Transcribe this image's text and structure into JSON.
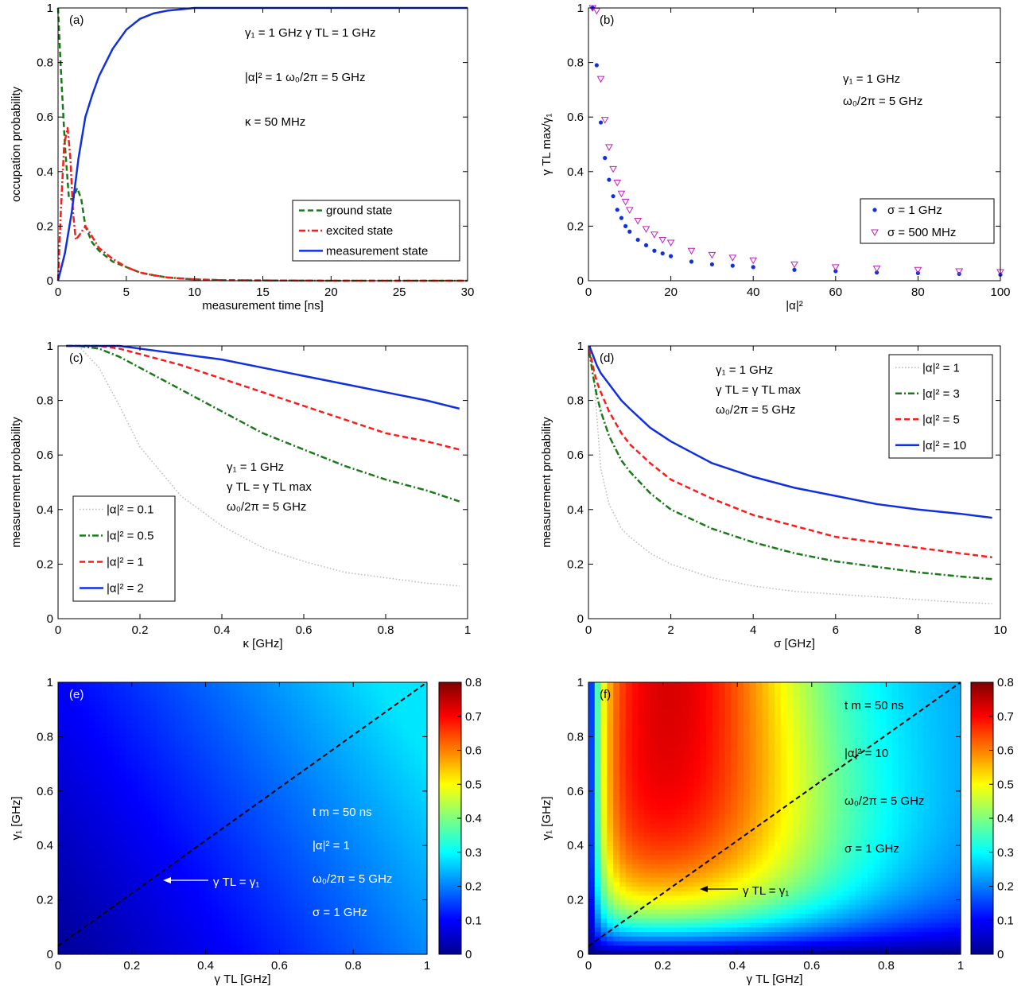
{
  "colors": {
    "green": "#1a7a1a",
    "red": "#ff1a1a",
    "blue": "#1030e0",
    "gray": "#b8b8b8",
    "magenta": "#c020c0",
    "dash": "#000000"
  },
  "chart_data": [
    {
      "id": "a",
      "type": "line",
      "panel_label": "(a)",
      "xlabel": "measurement time [ns]",
      "ylabel": "occupation probability",
      "xlim": [
        0,
        30
      ],
      "ylim": [
        0,
        1
      ],
      "xticks": [
        "0",
        "5",
        "10",
        "15",
        "20",
        "25",
        "30"
      ],
      "yticks": [
        "0",
        "0.2",
        "0.4",
        "0.6",
        "0.8",
        "1"
      ],
      "annotations": [
        "γ₁ = 1 GHz     γ TL = 1 GHz",
        "|α|² = 1     ω₀/2π = 5 GHz",
        "κ = 50 MHz"
      ],
      "legend": [
        "ground state",
        "excited state",
        "measurement state"
      ],
      "legend_position": "lower-right",
      "series": [
        {
          "name": "ground state",
          "style": "dashed",
          "color": "green",
          "x": [
            0,
            0.2,
            0.5,
            0.8,
            1.1,
            1.4,
            1.7,
            2.0,
            2.5,
            3,
            4,
            5,
            6,
            7,
            8,
            9,
            10,
            12,
            15,
            20,
            30
          ],
          "y": [
            1.0,
            0.78,
            0.5,
            0.3,
            0.3,
            0.34,
            0.3,
            0.2,
            0.14,
            0.11,
            0.07,
            0.05,
            0.03,
            0.02,
            0.012,
            0.008,
            0.005,
            0.002,
            0.001,
            0.0,
            0.0
          ]
        },
        {
          "name": "excited state",
          "style": "dashdot",
          "color": "red",
          "x": [
            0,
            0.2,
            0.45,
            0.7,
            0.9,
            1.1,
            1.3,
            1.6,
            2.0,
            2.4,
            3,
            4,
            5,
            6,
            7,
            8,
            10,
            12,
            15,
            20,
            30
          ],
          "y": [
            0.0,
            0.25,
            0.5,
            0.56,
            0.45,
            0.25,
            0.15,
            0.17,
            0.2,
            0.17,
            0.12,
            0.08,
            0.05,
            0.03,
            0.02,
            0.012,
            0.005,
            0.002,
            0.001,
            0.0,
            0.0
          ]
        },
        {
          "name": "measurement state",
          "style": "solid",
          "color": "blue",
          "x": [
            0,
            0.5,
            1,
            1.5,
            2,
            2.5,
            3,
            4,
            5,
            6,
            7,
            8,
            9,
            10,
            12,
            15,
            20,
            30
          ],
          "y": [
            0.0,
            0.1,
            0.25,
            0.45,
            0.6,
            0.68,
            0.75,
            0.85,
            0.92,
            0.96,
            0.98,
            0.99,
            0.995,
            1.0,
            1.0,
            1.0,
            1.0,
            1.0
          ]
        }
      ]
    },
    {
      "id": "b",
      "type": "scatter",
      "panel_label": "(b)",
      "xlabel": "|α|²",
      "ylabel": "γ TL max/γ₁",
      "xlim": [
        0,
        100
      ],
      "ylim": [
        0,
        1
      ],
      "xticks": [
        "0",
        "20",
        "40",
        "60",
        "80",
        "100"
      ],
      "yticks": [
        "0",
        "0.2",
        "0.4",
        "0.6",
        "0.8",
        "1"
      ],
      "annotations": [
        "γ₁ = 1 GHz",
        "ω₀/2π = 5 GHz"
      ],
      "legend": [
        "σ = 1 GHz",
        "σ = 500 MHz"
      ],
      "legend_position": "lower-right",
      "series": [
        {
          "name": "σ = 1 GHz",
          "marker": "dot",
          "color": "blue",
          "x": [
            1,
            2,
            3,
            4,
            5,
            6,
            7,
            8,
            9,
            10,
            12,
            14,
            16,
            18,
            20,
            25,
            30,
            35,
            40,
            50,
            60,
            70,
            80,
            90,
            100
          ],
          "y": [
            1.0,
            0.79,
            0.58,
            0.45,
            0.37,
            0.31,
            0.26,
            0.23,
            0.2,
            0.18,
            0.15,
            0.13,
            0.11,
            0.1,
            0.09,
            0.07,
            0.06,
            0.055,
            0.05,
            0.04,
            0.035,
            0.03,
            0.028,
            0.025,
            0.022
          ]
        },
        {
          "name": "σ = 500 MHz",
          "marker": "triangle-down",
          "color": "magenta",
          "x": [
            1,
            2,
            3,
            4,
            5,
            6,
            7,
            8,
            9,
            10,
            12,
            14,
            16,
            18,
            20,
            25,
            30,
            35,
            40,
            50,
            60,
            70,
            80,
            90,
            100
          ],
          "y": [
            1.0,
            0.99,
            0.74,
            0.59,
            0.49,
            0.41,
            0.36,
            0.32,
            0.29,
            0.26,
            0.22,
            0.19,
            0.17,
            0.15,
            0.14,
            0.11,
            0.095,
            0.085,
            0.075,
            0.06,
            0.05,
            0.045,
            0.04,
            0.035,
            0.032
          ]
        }
      ]
    },
    {
      "id": "c",
      "type": "line",
      "panel_label": "(c)",
      "xlabel": "κ [GHz]",
      "ylabel": "measurement probability",
      "xlim": [
        0,
        1
      ],
      "ylim": [
        0,
        1
      ],
      "xticks": [
        "0",
        "0.2",
        "0.4",
        "0.6",
        "0.8",
        "1"
      ],
      "yticks": [
        "0",
        "0.2",
        "0.4",
        "0.6",
        "0.8",
        "1"
      ],
      "annotations": [
        "γ₁ = 1 GHz",
        "γ TL = γ TL max",
        "ω₀/2π = 5 GHz"
      ],
      "legend": [
        "|α|² = 0.1",
        "|α|² = 0.5",
        "|α|² = 1",
        "|α|² = 2"
      ],
      "legend_position": "lower-left",
      "series": [
        {
          "name": "|α|² = 0.1",
          "style": "dotted",
          "color": "gray",
          "x": [
            0.02,
            0.05,
            0.1,
            0.15,
            0.2,
            0.3,
            0.4,
            0.5,
            0.6,
            0.7,
            0.8,
            0.9,
            0.98
          ],
          "y": [
            1.0,
            1.0,
            0.92,
            0.78,
            0.63,
            0.45,
            0.34,
            0.26,
            0.21,
            0.17,
            0.15,
            0.13,
            0.12
          ]
        },
        {
          "name": "|α|² = 0.5",
          "style": "dashdot",
          "color": "green",
          "x": [
            0.02,
            0.05,
            0.1,
            0.15,
            0.2,
            0.3,
            0.4,
            0.5,
            0.6,
            0.7,
            0.8,
            0.9,
            0.98
          ],
          "y": [
            1.0,
            1.0,
            0.99,
            0.96,
            0.92,
            0.84,
            0.76,
            0.68,
            0.62,
            0.56,
            0.51,
            0.47,
            0.43
          ]
        },
        {
          "name": "|α|² = 1",
          "style": "dashed",
          "color": "red",
          "x": [
            0.02,
            0.05,
            0.1,
            0.15,
            0.2,
            0.3,
            0.4,
            0.5,
            0.6,
            0.7,
            0.8,
            0.9,
            0.98
          ],
          "y": [
            1.0,
            1.0,
            1.0,
            0.99,
            0.97,
            0.93,
            0.88,
            0.83,
            0.78,
            0.73,
            0.68,
            0.65,
            0.62
          ]
        },
        {
          "name": "|α|² = 2",
          "style": "solid",
          "color": "blue",
          "x": [
            0.02,
            0.05,
            0.1,
            0.15,
            0.2,
            0.3,
            0.4,
            0.5,
            0.6,
            0.7,
            0.8,
            0.9,
            0.98
          ],
          "y": [
            1.0,
            1.0,
            1.0,
            1.0,
            0.99,
            0.97,
            0.95,
            0.92,
            0.89,
            0.86,
            0.83,
            0.8,
            0.77
          ]
        }
      ]
    },
    {
      "id": "d",
      "type": "line",
      "panel_label": "(d)",
      "xlabel": "σ [GHz]",
      "ylabel": "measurement probability",
      "xlim": [
        0,
        10
      ],
      "ylim": [
        0,
        1
      ],
      "xticks": [
        "0",
        "2",
        "4",
        "6",
        "8",
        "10"
      ],
      "yticks": [
        "0",
        "0.2",
        "0.4",
        "0.6",
        "0.8",
        "1"
      ],
      "annotations": [
        "γ₁ = 1 GHz",
        "γ TL = γ TL max",
        "ω₀/2π = 5 GHz"
      ],
      "legend": [
        "|α|² = 1",
        "|α|² = 3",
        "|α|² = 5",
        "|α|² = 10"
      ],
      "legend_position": "top-right",
      "series": [
        {
          "name": "|α|² = 1",
          "style": "dotted",
          "color": "gray",
          "x": [
            0.05,
            0.1,
            0.2,
            0.3,
            0.5,
            0.8,
            1,
            1.5,
            2,
            3,
            4,
            5,
            6,
            7,
            8,
            9,
            9.8
          ],
          "y": [
            1.0,
            0.95,
            0.75,
            0.55,
            0.42,
            0.33,
            0.3,
            0.24,
            0.2,
            0.15,
            0.12,
            0.1,
            0.09,
            0.08,
            0.07,
            0.06,
            0.055
          ]
        },
        {
          "name": "|α|² = 3",
          "style": "dashdot",
          "color": "green",
          "x": [
            0.02,
            0.1,
            0.2,
            0.3,
            0.5,
            0.8,
            1,
            1.5,
            2,
            3,
            4,
            5,
            6,
            7,
            8,
            9,
            9.8
          ],
          "y": [
            0.98,
            0.9,
            0.82,
            0.76,
            0.67,
            0.58,
            0.54,
            0.46,
            0.4,
            0.33,
            0.28,
            0.24,
            0.21,
            0.19,
            0.17,
            0.155,
            0.145
          ]
        },
        {
          "name": "|α|² = 5",
          "style": "dashed",
          "color": "red",
          "x": [
            0.02,
            0.1,
            0.2,
            0.3,
            0.5,
            0.8,
            1,
            1.5,
            2,
            3,
            4,
            5,
            6,
            7,
            8,
            9,
            9.8
          ],
          "y": [
            0.99,
            0.93,
            0.87,
            0.83,
            0.76,
            0.68,
            0.64,
            0.57,
            0.51,
            0.44,
            0.38,
            0.34,
            0.3,
            0.28,
            0.26,
            0.24,
            0.225
          ]
        },
        {
          "name": "|α|² = 10",
          "style": "solid",
          "color": "blue",
          "x": [
            0.02,
            0.1,
            0.2,
            0.3,
            0.5,
            0.8,
            1,
            1.5,
            2,
            3,
            4,
            5,
            6,
            7,
            8,
            9,
            9.8
          ],
          "y": [
            1.0,
            0.97,
            0.93,
            0.9,
            0.86,
            0.8,
            0.77,
            0.7,
            0.65,
            0.57,
            0.52,
            0.48,
            0.45,
            0.42,
            0.4,
            0.385,
            0.37
          ]
        }
      ]
    },
    {
      "id": "e",
      "type": "heatmap",
      "panel_label": "(e)",
      "xlabel": "γ TL [GHz]",
      "ylabel": "γ₁ [GHz]",
      "xlim": [
        0,
        1
      ],
      "ylim": [
        0,
        1
      ],
      "xticks": [
        "0",
        "0.2",
        "0.4",
        "0.6",
        "0.8",
        "1"
      ],
      "yticks": [
        "0",
        "0.2",
        "0.4",
        "0.6",
        "0.8",
        "1"
      ],
      "colorbar_ticks": [
        "0",
        "0.1",
        "0.2",
        "0.3",
        "0.4",
        "0.5",
        "0.6",
        "0.7",
        "0.8"
      ],
      "colorbar_range": [
        0,
        0.8
      ],
      "arrow_label": "γ TL = γ₁",
      "annotations": [
        "t m = 50 ns",
        "|α|² = 1",
        "ω₀/2π = 5 GHz",
        "σ = 1 GHz"
      ],
      "diagonal": {
        "x": [
          0,
          1
        ],
        "y": [
          0.03,
          1.0
        ]
      },
      "value_range": [
        0.02,
        0.28
      ]
    },
    {
      "id": "f",
      "type": "heatmap",
      "panel_label": "(f)",
      "xlabel": "γ TL [GHz]",
      "ylabel": "γ₁ [GHz]",
      "xlim": [
        0,
        1
      ],
      "ylim": [
        0,
        1
      ],
      "xticks": [
        "0",
        "0.2",
        "0.4",
        "0.6",
        "0.8",
        "1"
      ],
      "yticks": [
        "0",
        "0.2",
        "0.4",
        "0.6",
        "0.8",
        "1"
      ],
      "colorbar_ticks": [
        "0",
        "0.1",
        "0.2",
        "0.3",
        "0.4",
        "0.5",
        "0.6",
        "0.7",
        "0.8"
      ],
      "colorbar_range": [
        0,
        0.8
      ],
      "arrow_label": "γ TL = γ₁",
      "annotations": [
        "t m = 50 ns",
        "|α|² = 10",
        "ω₀/2π = 5 GHz",
        "σ = 1 GHz"
      ],
      "diagonal": {
        "x": [
          0,
          1
        ],
        "y": [
          0.03,
          1.0
        ]
      },
      "value_range": [
        0.0,
        0.8
      ]
    }
  ]
}
